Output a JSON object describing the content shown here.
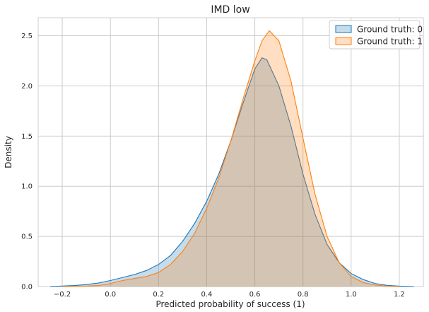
{
  "chart_data": {
    "type": "area",
    "title": "IMD low",
    "xlabel": "Predicted probability of success (1)",
    "ylabel": "Density",
    "xlim": [
      -0.3,
      1.3
    ],
    "ylim": [
      0,
      2.68
    ],
    "xticks": [
      -0.2,
      0.0,
      0.2,
      0.4,
      0.6,
      0.8,
      1.0,
      1.2
    ],
    "xtick_labels": [
      "−0.2",
      "0.0",
      "0.2",
      "0.4",
      "0.6",
      "0.8",
      "1.0",
      "1.2"
    ],
    "yticks": [
      0.0,
      0.5,
      1.0,
      1.5,
      2.0,
      2.5
    ],
    "ytick_labels": [
      "0.0",
      "0.5",
      "1.0",
      "1.5",
      "2.0",
      "2.5"
    ],
    "grid": true,
    "legend_position": "top-right",
    "series": [
      {
        "name": "Ground truth: 0",
        "color": "#1f77b4",
        "points": [
          [
            -0.25,
            0.0
          ],
          [
            -0.2,
            0.005
          ],
          [
            -0.15,
            0.01
          ],
          [
            -0.1,
            0.02
          ],
          [
            -0.05,
            0.035
          ],
          [
            0.0,
            0.06
          ],
          [
            0.05,
            0.09
          ],
          [
            0.1,
            0.12
          ],
          [
            0.15,
            0.16
          ],
          [
            0.2,
            0.22
          ],
          [
            0.25,
            0.31
          ],
          [
            0.3,
            0.45
          ],
          [
            0.35,
            0.63
          ],
          [
            0.4,
            0.85
          ],
          [
            0.45,
            1.12
          ],
          [
            0.5,
            1.45
          ],
          [
            0.55,
            1.82
          ],
          [
            0.6,
            2.17
          ],
          [
            0.63,
            2.28
          ],
          [
            0.65,
            2.26
          ],
          [
            0.7,
            2.0
          ],
          [
            0.75,
            1.6
          ],
          [
            0.8,
            1.12
          ],
          [
            0.85,
            0.72
          ],
          [
            0.9,
            0.42
          ],
          [
            0.95,
            0.24
          ],
          [
            1.0,
            0.13
          ],
          [
            1.05,
            0.07
          ],
          [
            1.1,
            0.03
          ],
          [
            1.15,
            0.012
          ],
          [
            1.2,
            0.004
          ],
          [
            1.26,
            0.0
          ]
        ]
      },
      {
        "name": "Ground truth: 1",
        "color": "#ff7f0e",
        "points": [
          [
            -0.2,
            0.0
          ],
          [
            -0.1,
            0.005
          ],
          [
            -0.05,
            0.01
          ],
          [
            0.0,
            0.03
          ],
          [
            0.05,
            0.06
          ],
          [
            0.1,
            0.08
          ],
          [
            0.15,
            0.1
          ],
          [
            0.2,
            0.14
          ],
          [
            0.25,
            0.22
          ],
          [
            0.3,
            0.35
          ],
          [
            0.35,
            0.53
          ],
          [
            0.4,
            0.78
          ],
          [
            0.45,
            1.08
          ],
          [
            0.5,
            1.45
          ],
          [
            0.55,
            1.86
          ],
          [
            0.6,
            2.25
          ],
          [
            0.63,
            2.45
          ],
          [
            0.66,
            2.55
          ],
          [
            0.7,
            2.45
          ],
          [
            0.75,
            2.05
          ],
          [
            0.8,
            1.48
          ],
          [
            0.85,
            0.92
          ],
          [
            0.9,
            0.5
          ],
          [
            0.95,
            0.24
          ],
          [
            1.0,
            0.1
          ],
          [
            1.05,
            0.04
          ],
          [
            1.1,
            0.015
          ],
          [
            1.15,
            0.005
          ],
          [
            1.2,
            0.0
          ]
        ]
      }
    ]
  }
}
